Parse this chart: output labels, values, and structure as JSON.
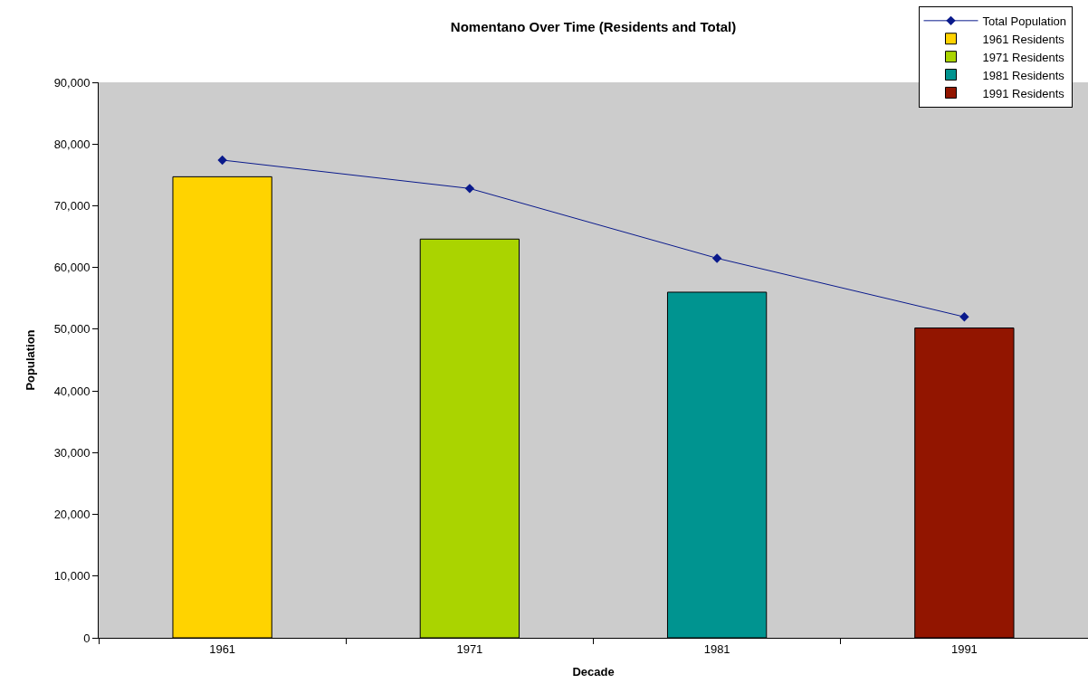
{
  "chart_data": {
    "type": "bar",
    "title": "Nomentano Over Time (Residents and Total)",
    "xlabel": "Decade",
    "ylabel": "Population",
    "categories": [
      "1961",
      "1971",
      "1981",
      "1991"
    ],
    "series": [
      {
        "name": "Total Population",
        "type": "line",
        "color": "#0a1a8c",
        "marker": "diamond",
        "line_style": "solid",
        "values": [
          77400,
          72800,
          61500,
          52000
        ]
      },
      {
        "name": "1961 Residents",
        "color": "#ffd300",
        "values": [
          74700,
          null,
          null,
          null
        ]
      },
      {
        "name": "1971 Residents",
        "color": "#aad400",
        "values": [
          null,
          64600,
          null,
          null
        ]
      },
      {
        "name": "1981 Residents",
        "color": "#009490",
        "values": [
          null,
          null,
          56000,
          null
        ]
      },
      {
        "name": "1991 Residents",
        "color": "#921500",
        "values": [
          null,
          null,
          null,
          50200
        ]
      }
    ],
    "ylim": [
      0,
      90000
    ],
    "yticks": [
      {
        "value": 0,
        "label": "0"
      },
      {
        "value": 10000,
        "label": "10,000"
      },
      {
        "value": 20000,
        "label": "20,000"
      },
      {
        "value": 30000,
        "label": "30,000"
      },
      {
        "value": 40000,
        "label": "40,000"
      },
      {
        "value": 50000,
        "label": "50,000"
      },
      {
        "value": 60000,
        "label": "60,000"
      },
      {
        "value": 70000,
        "label": "70,000"
      },
      {
        "value": 80000,
        "label": "80,000"
      },
      {
        "value": 90000,
        "label": "90,000"
      }
    ],
    "grid": false,
    "legend": "top right"
  }
}
